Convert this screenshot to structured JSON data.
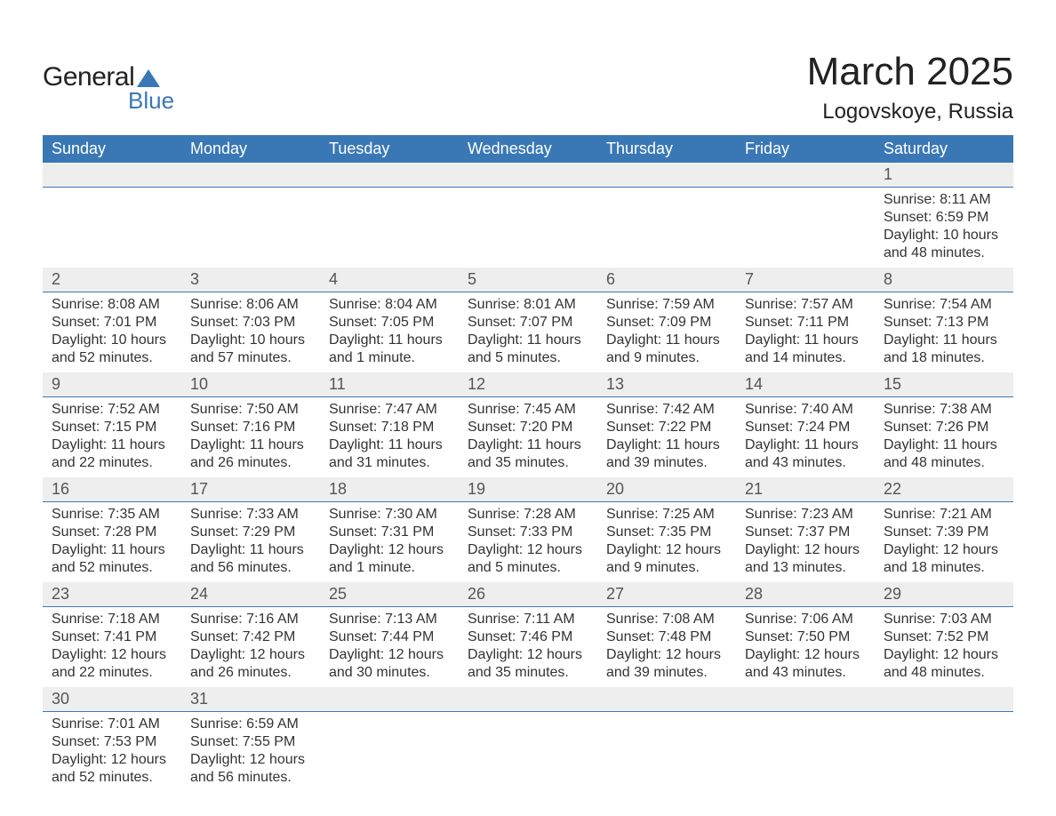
{
  "logo": {
    "text_general": "General",
    "text_blue": "Blue",
    "sail_color": "#3a78b5",
    "text_color_dark": "#222222",
    "text_color_blue": "#3a78b5"
  },
  "header": {
    "month_title": "March 2025",
    "location": "Logovskoye, Russia"
  },
  "colors": {
    "header_bg": "#3a78b5",
    "header_text": "#ffffff",
    "daynum_bg": "#eeeeee",
    "daynum_text": "#555555",
    "row_divider": "#3a78b5",
    "body_text": "#333333",
    "page_bg": "#ffffff"
  },
  "typography": {
    "month_title_fontsize": 44,
    "location_fontsize": 24,
    "weekday_fontsize": 18,
    "daynum_fontsize": 18,
    "data_fontsize": 16,
    "font_family": "Arial"
  },
  "calendar": {
    "weekdays": [
      "Sunday",
      "Monday",
      "Tuesday",
      "Wednesday",
      "Thursday",
      "Friday",
      "Saturday"
    ],
    "weeks": [
      {
        "days": [
          null,
          null,
          null,
          null,
          null,
          null,
          {
            "num": "1",
            "sunrise": "Sunrise: 8:11 AM",
            "sunset": "Sunset: 6:59 PM",
            "daylight": "Daylight: 10 hours and 48 minutes."
          }
        ]
      },
      {
        "days": [
          {
            "num": "2",
            "sunrise": "Sunrise: 8:08 AM",
            "sunset": "Sunset: 7:01 PM",
            "daylight": "Daylight: 10 hours and 52 minutes."
          },
          {
            "num": "3",
            "sunrise": "Sunrise: 8:06 AM",
            "sunset": "Sunset: 7:03 PM",
            "daylight": "Daylight: 10 hours and 57 minutes."
          },
          {
            "num": "4",
            "sunrise": "Sunrise: 8:04 AM",
            "sunset": "Sunset: 7:05 PM",
            "daylight": "Daylight: 11 hours and 1 minute."
          },
          {
            "num": "5",
            "sunrise": "Sunrise: 8:01 AM",
            "sunset": "Sunset: 7:07 PM",
            "daylight": "Daylight: 11 hours and 5 minutes."
          },
          {
            "num": "6",
            "sunrise": "Sunrise: 7:59 AM",
            "sunset": "Sunset: 7:09 PM",
            "daylight": "Daylight: 11 hours and 9 minutes."
          },
          {
            "num": "7",
            "sunrise": "Sunrise: 7:57 AM",
            "sunset": "Sunset: 7:11 PM",
            "daylight": "Daylight: 11 hours and 14 minutes."
          },
          {
            "num": "8",
            "sunrise": "Sunrise: 7:54 AM",
            "sunset": "Sunset: 7:13 PM",
            "daylight": "Daylight: 11 hours and 18 minutes."
          }
        ]
      },
      {
        "days": [
          {
            "num": "9",
            "sunrise": "Sunrise: 7:52 AM",
            "sunset": "Sunset: 7:15 PM",
            "daylight": "Daylight: 11 hours and 22 minutes."
          },
          {
            "num": "10",
            "sunrise": "Sunrise: 7:50 AM",
            "sunset": "Sunset: 7:16 PM",
            "daylight": "Daylight: 11 hours and 26 minutes."
          },
          {
            "num": "11",
            "sunrise": "Sunrise: 7:47 AM",
            "sunset": "Sunset: 7:18 PM",
            "daylight": "Daylight: 11 hours and 31 minutes."
          },
          {
            "num": "12",
            "sunrise": "Sunrise: 7:45 AM",
            "sunset": "Sunset: 7:20 PM",
            "daylight": "Daylight: 11 hours and 35 minutes."
          },
          {
            "num": "13",
            "sunrise": "Sunrise: 7:42 AM",
            "sunset": "Sunset: 7:22 PM",
            "daylight": "Daylight: 11 hours and 39 minutes."
          },
          {
            "num": "14",
            "sunrise": "Sunrise: 7:40 AM",
            "sunset": "Sunset: 7:24 PM",
            "daylight": "Daylight: 11 hours and 43 minutes."
          },
          {
            "num": "15",
            "sunrise": "Sunrise: 7:38 AM",
            "sunset": "Sunset: 7:26 PM",
            "daylight": "Daylight: 11 hours and 48 minutes."
          }
        ]
      },
      {
        "days": [
          {
            "num": "16",
            "sunrise": "Sunrise: 7:35 AM",
            "sunset": "Sunset: 7:28 PM",
            "daylight": "Daylight: 11 hours and 52 minutes."
          },
          {
            "num": "17",
            "sunrise": "Sunrise: 7:33 AM",
            "sunset": "Sunset: 7:29 PM",
            "daylight": "Daylight: 11 hours and 56 minutes."
          },
          {
            "num": "18",
            "sunrise": "Sunrise: 7:30 AM",
            "sunset": "Sunset: 7:31 PM",
            "daylight": "Daylight: 12 hours and 1 minute."
          },
          {
            "num": "19",
            "sunrise": "Sunrise: 7:28 AM",
            "sunset": "Sunset: 7:33 PM",
            "daylight": "Daylight: 12 hours and 5 minutes."
          },
          {
            "num": "20",
            "sunrise": "Sunrise: 7:25 AM",
            "sunset": "Sunset: 7:35 PM",
            "daylight": "Daylight: 12 hours and 9 minutes."
          },
          {
            "num": "21",
            "sunrise": "Sunrise: 7:23 AM",
            "sunset": "Sunset: 7:37 PM",
            "daylight": "Daylight: 12 hours and 13 minutes."
          },
          {
            "num": "22",
            "sunrise": "Sunrise: 7:21 AM",
            "sunset": "Sunset: 7:39 PM",
            "daylight": "Daylight: 12 hours and 18 minutes."
          }
        ]
      },
      {
        "days": [
          {
            "num": "23",
            "sunrise": "Sunrise: 7:18 AM",
            "sunset": "Sunset: 7:41 PM",
            "daylight": "Daylight: 12 hours and 22 minutes."
          },
          {
            "num": "24",
            "sunrise": "Sunrise: 7:16 AM",
            "sunset": "Sunset: 7:42 PM",
            "daylight": "Daylight: 12 hours and 26 minutes."
          },
          {
            "num": "25",
            "sunrise": "Sunrise: 7:13 AM",
            "sunset": "Sunset: 7:44 PM",
            "daylight": "Daylight: 12 hours and 30 minutes."
          },
          {
            "num": "26",
            "sunrise": "Sunrise: 7:11 AM",
            "sunset": "Sunset: 7:46 PM",
            "daylight": "Daylight: 12 hours and 35 minutes."
          },
          {
            "num": "27",
            "sunrise": "Sunrise: 7:08 AM",
            "sunset": "Sunset: 7:48 PM",
            "daylight": "Daylight: 12 hours and 39 minutes."
          },
          {
            "num": "28",
            "sunrise": "Sunrise: 7:06 AM",
            "sunset": "Sunset: 7:50 PM",
            "daylight": "Daylight: 12 hours and 43 minutes."
          },
          {
            "num": "29",
            "sunrise": "Sunrise: 7:03 AM",
            "sunset": "Sunset: 7:52 PM",
            "daylight": "Daylight: 12 hours and 48 minutes."
          }
        ]
      },
      {
        "days": [
          {
            "num": "30",
            "sunrise": "Sunrise: 7:01 AM",
            "sunset": "Sunset: 7:53 PM",
            "daylight": "Daylight: 12 hours and 52 minutes."
          },
          {
            "num": "31",
            "sunrise": "Sunrise: 6:59 AM",
            "sunset": "Sunset: 7:55 PM",
            "daylight": "Daylight: 12 hours and 56 minutes."
          },
          null,
          null,
          null,
          null,
          null
        ]
      }
    ]
  }
}
